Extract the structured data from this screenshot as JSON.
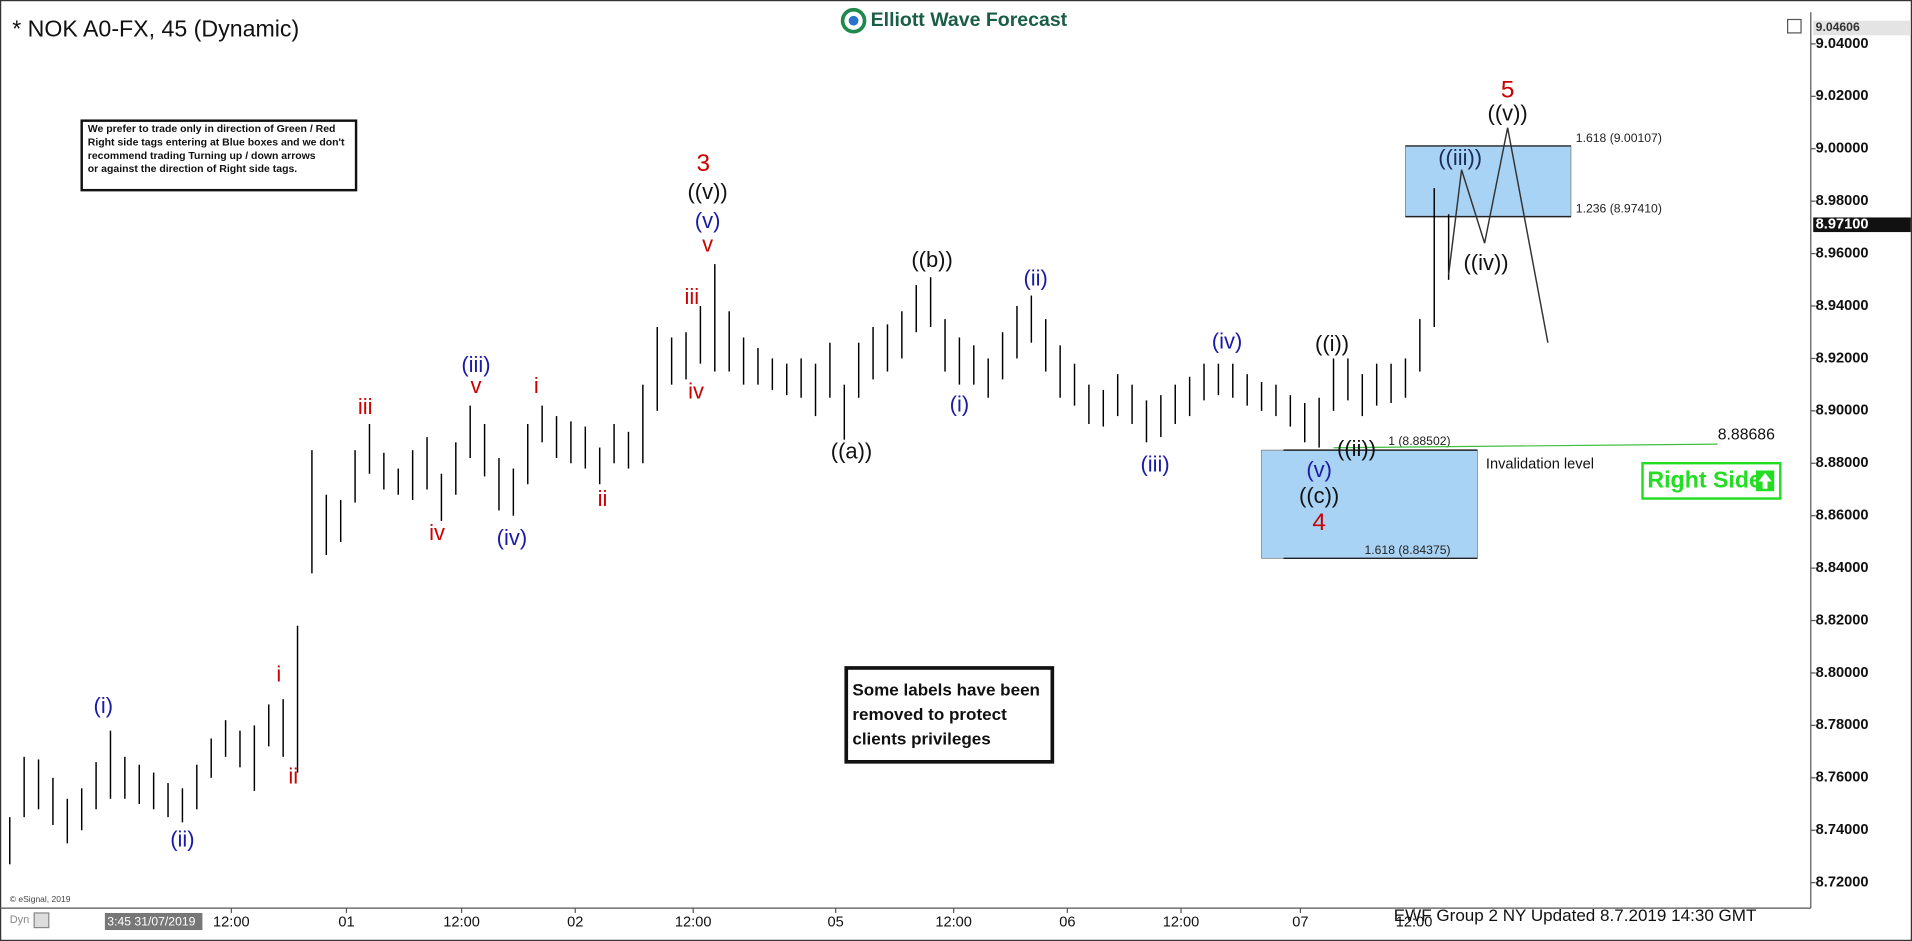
{
  "chart_data": {
    "type": "ohlc",
    "title": "* NOK A0-FX, 45 (Dynamic)",
    "logo": "Elliott Wave Forecast",
    "x": [
      0,
      1,
      2,
      3,
      4,
      5,
      6,
      7,
      8,
      9,
      10,
      11,
      12,
      13,
      14,
      15,
      16,
      17,
      18,
      19,
      20,
      21,
      22,
      23,
      24,
      25,
      26,
      27,
      28,
      29,
      30,
      31,
      32,
      33,
      34,
      35,
      36,
      37,
      38,
      39,
      40,
      41,
      42,
      43,
      44,
      45,
      46,
      47,
      48,
      49,
      50,
      51,
      52,
      53,
      54,
      55,
      56,
      57,
      58,
      59,
      60,
      61,
      62,
      63,
      64,
      65,
      66,
      67,
      68,
      69,
      70,
      71,
      72,
      73,
      74,
      75,
      76,
      77,
      78,
      79,
      80,
      81,
      82,
      83,
      84,
      85,
      86,
      87,
      88,
      89,
      90,
      91,
      92,
      93,
      94,
      95,
      96,
      97,
      98,
      99,
      100
    ],
    "series": [
      {
        "color": "#000000",
        "high": [
          8.745,
          8.768,
          8.767,
          8.76,
          8.752,
          8.756,
          8.766,
          8.778,
          8.768,
          8.765,
          8.762,
          8.758,
          8.756,
          8.765,
          8.775,
          8.782,
          8.778,
          8.78,
          8.788,
          8.79,
          8.818,
          8.885,
          8.868,
          8.866,
          8.885,
          8.895,
          8.884,
          8.878,
          8.885,
          8.89,
          8.876,
          8.888,
          8.902,
          8.895,
          8.882,
          8.878,
          8.895,
          8.902,
          8.898,
          8.896,
          8.894,
          8.886,
          8.895,
          8.892,
          8.91,
          8.932,
          8.928,
          8.93,
          8.94,
          8.956,
          8.938,
          8.928,
          8.924,
          8.92,
          8.918,
          8.92,
          8.918,
          8.926,
          8.91,
          8.926,
          8.932,
          8.933,
          8.938,
          8.948,
          8.951,
          8.935,
          8.928,
          8.925,
          8.92,
          8.93,
          8.94,
          8.944,
          8.935,
          8.925,
          8.918,
          8.91,
          8.908,
          8.914,
          8.91,
          8.904,
          8.906,
          8.91,
          8.913,
          8.918,
          8.918,
          8.918,
          8.914,
          8.911,
          8.91,
          8.906,
          8.903,
          8.905,
          8.92,
          8.92,
          8.914,
          8.918,
          8.918,
          8.92,
          8.935,
          8.985,
          8.975
        ],
        "low": [
          8.727,
          8.745,
          8.748,
          8.742,
          8.735,
          8.74,
          8.748,
          8.752,
          8.752,
          8.75,
          8.748,
          8.745,
          8.743,
          8.748,
          8.76,
          8.768,
          8.764,
          8.755,
          8.772,
          8.768,
          8.762,
          8.838,
          8.845,
          8.85,
          8.865,
          8.876,
          8.87,
          8.868,
          8.866,
          8.87,
          8.858,
          8.868,
          8.882,
          8.875,
          8.862,
          8.86,
          8.872,
          8.888,
          8.882,
          8.88,
          8.878,
          8.872,
          8.88,
          8.878,
          8.88,
          8.9,
          8.91,
          8.912,
          8.918,
          8.915,
          8.915,
          8.91,
          8.91,
          8.908,
          8.906,
          8.905,
          8.898,
          8.905,
          8.889,
          8.905,
          8.912,
          8.915,
          8.92,
          8.93,
          8.932,
          8.915,
          8.91,
          8.91,
          8.905,
          8.912,
          8.92,
          8.926,
          8.915,
          8.905,
          8.902,
          8.895,
          8.894,
          8.898,
          8.895,
          8.888,
          8.89,
          8.895,
          8.898,
          8.904,
          8.906,
          8.905,
          8.902,
          8.9,
          8.898,
          8.894,
          8.888,
          8.886,
          8.9,
          8.904,
          8.898,
          8.902,
          8.903,
          8.905,
          8.915,
          8.932,
          8.95
        ]
      }
    ],
    "xlim": [
      -0.678,
      125.17
    ],
    "ylim": [
      8.7103,
      9.0521
    ],
    "xticks": [
      {
        "value": 15.4,
        "label": "12:00"
      },
      {
        "value": 23.4,
        "label": "01"
      },
      {
        "value": 31.4,
        "label": "12:00"
      },
      {
        "value": 39.3,
        "label": "02"
      },
      {
        "value": 47.5,
        "label": "12:00"
      },
      {
        "value": 57.4,
        "label": "05"
      },
      {
        "value": 65.6,
        "label": "12:00"
      },
      {
        "value": 73.5,
        "label": "06"
      },
      {
        "value": 81.4,
        "label": "12:00"
      },
      {
        "value": 89.7,
        "label": "07"
      },
      {
        "value": 97.6,
        "label": "12:00"
      }
    ],
    "yticks": [
      {
        "value": 8.72,
        "label": "8.72000"
      },
      {
        "value": 8.74,
        "label": "8.74000"
      },
      {
        "value": 8.76,
        "label": "8.76000"
      },
      {
        "value": 8.78,
        "label": "8.78000"
      },
      {
        "value": 8.8,
        "label": "8.80000"
      },
      {
        "value": 8.82,
        "label": "8.82000"
      },
      {
        "value": 8.84,
        "label": "8.84000"
      },
      {
        "value": 8.86,
        "label": "8.86000"
      },
      {
        "value": 8.88,
        "label": "8.88000"
      },
      {
        "value": 8.9,
        "label": "8.90000"
      },
      {
        "value": 8.92,
        "label": "8.92000"
      },
      {
        "value": 8.94,
        "label": "8.94000"
      },
      {
        "value": 8.96,
        "label": "8.96000"
      },
      {
        "value": 8.98,
        "label": "8.98000"
      },
      {
        "value": 9.0,
        "label": "9.00000"
      },
      {
        "value": 9.02,
        "label": "9.02000"
      },
      {
        "value": 9.04,
        "label": "9.04000"
      }
    ],
    "price_labels": [
      {
        "value": 9.04606,
        "label": "9.04606"
      },
      {
        "value": 8.971,
        "label": "8.97100"
      }
    ],
    "annotations": [
      {
        "text": "(i)",
        "x": 6.5,
        "y": 8.787,
        "color": "#1a1aa6"
      },
      {
        "text": "(ii)",
        "x": 12,
        "y": 8.736,
        "color": "#1a1aa6"
      },
      {
        "text": "i",
        "x": 18.7,
        "y": 8.799,
        "color": "#cc0000"
      },
      {
        "text": "ii",
        "x": 19.7,
        "y": 8.76,
        "color": "#cc0000"
      },
      {
        "text": "iii",
        "x": 24.7,
        "y": 8.901,
        "color": "#cc0000"
      },
      {
        "text": "iv",
        "x": 29.7,
        "y": 8.853,
        "color": "#cc0000"
      },
      {
        "text": "(iii)",
        "x": 32.4,
        "y": 8.917,
        "color": "#1a1aa6"
      },
      {
        "text": "v",
        "x": 32.4,
        "y": 8.909,
        "color": "#cc0000"
      },
      {
        "text": "(iv)",
        "x": 34.9,
        "y": 8.851,
        "color": "#1a1aa6"
      },
      {
        "text": "i",
        "x": 36.6,
        "y": 8.909,
        "color": "#cc0000"
      },
      {
        "text": "ii",
        "x": 41.2,
        "y": 8.866,
        "color": "#cc0000"
      },
      {
        "text": "iii",
        "x": 47.4,
        "y": 8.943,
        "color": "#cc0000"
      },
      {
        "text": "iv",
        "x": 47.7,
        "y": 8.907,
        "color": "#cc0000"
      },
      {
        "text": "3",
        "x": 48.2,
        "y": 8.994,
        "color": "#cc0000"
      },
      {
        "text": "((v))",
        "x": 48.5,
        "y": 8.983,
        "color": "#111111"
      },
      {
        "text": "(v)",
        "x": 48.5,
        "y": 8.972,
        "color": "#1a1aa6"
      },
      {
        "text": "v",
        "x": 48.5,
        "y": 8.963,
        "color": "#cc0000"
      },
      {
        "text": "((a))",
        "x": 58.5,
        "y": 8.884,
        "color": "#111111"
      },
      {
        "text": "((b))",
        "x": 64.1,
        "y": 8.957,
        "color": "#111111"
      },
      {
        "text": "(i)",
        "x": 66,
        "y": 8.902,
        "color": "#1a1aa6"
      },
      {
        "text": "(ii)",
        "x": 71.3,
        "y": 8.95,
        "color": "#1a1aa6"
      },
      {
        "text": "(iii)",
        "x": 79.6,
        "y": 8.879,
        "color": "#1a1aa6"
      },
      {
        "text": "(iv)",
        "x": 84.6,
        "y": 8.926,
        "color": "#1a1aa6"
      },
      {
        "text": "((i))",
        "x": 91.9,
        "y": 8.925,
        "color": "#111111"
      },
      {
        "text": "((ii))",
        "x": 93.6,
        "y": 8.885,
        "color": "#111111"
      },
      {
        "text": "(v)",
        "x": 91,
        "y": 8.877,
        "color": "#1a1aa6"
      },
      {
        "text": "((c))",
        "x": 91,
        "y": 8.867,
        "color": "#111111"
      },
      {
        "text": "4",
        "x": 91,
        "y": 8.857,
        "color": "#cc0000"
      },
      {
        "text": "((iii))",
        "x": 100.8,
        "y": 8.996,
        "color": "#1a2a5a"
      },
      {
        "text": "((iv))",
        "x": 102.6,
        "y": 8.956,
        "color": "#111111"
      },
      {
        "text": "((v))",
        "x": 104.1,
        "y": 9.013,
        "color": "#111111"
      },
      {
        "text": "5",
        "x": 104.1,
        "y": 9.022,
        "color": "#cc0000"
      }
    ],
    "projection": {
      "x": [
        100,
        100.9,
        102.5,
        104.1,
        106.9
      ],
      "values": [
        8.952,
        8.992,
        8.964,
        9.008,
        8.926
      ]
    },
    "zones": [
      {
        "x": [
          97,
          108.5
        ],
        "color": "#a9d3f5",
        "levels": [
          {
            "value": 9.00107,
            "label": "1.618 (9.00107)"
          },
          {
            "value": 8.9741,
            "label": "1.236 (8.97410)"
          }
        ]
      },
      {
        "x": [
          87,
          102
        ],
        "color": "#a9d3f5",
        "levels": [
          {
            "value": 8.88502,
            "label": "1 (8.88502)"
          },
          {
            "value": 8.84375,
            "label": "1.618 (8.84375)"
          }
        ]
      }
    ],
    "invalidation": {
      "value": 8.88686,
      "label": "8.88686",
      "text": "Invalidation level",
      "x": [
        92,
        118.7
      ],
      "color": "#3fbf3f"
    },
    "right_side": {
      "text": "Right Side",
      "color": "#22dd22"
    },
    "notes": [
      {
        "lines": [
          "We prefer to trade only in direction of Green / Red",
          "Right side tags entering at Blue boxes and we don't",
          "recommend trading Turning up / down arrows",
          "or against the direction of Right side tags."
        ]
      },
      {
        "lines": [
          "Some labels have been",
          "removed to protect",
          "clients privileges"
        ]
      }
    ],
    "footer": "EWF Group 2 NY Updated 8.7.2019 14:30 GMT",
    "source": "© eSignal, 2019",
    "mode": "Dyn",
    "cursor_time": "3:45 31/07/2019"
  }
}
